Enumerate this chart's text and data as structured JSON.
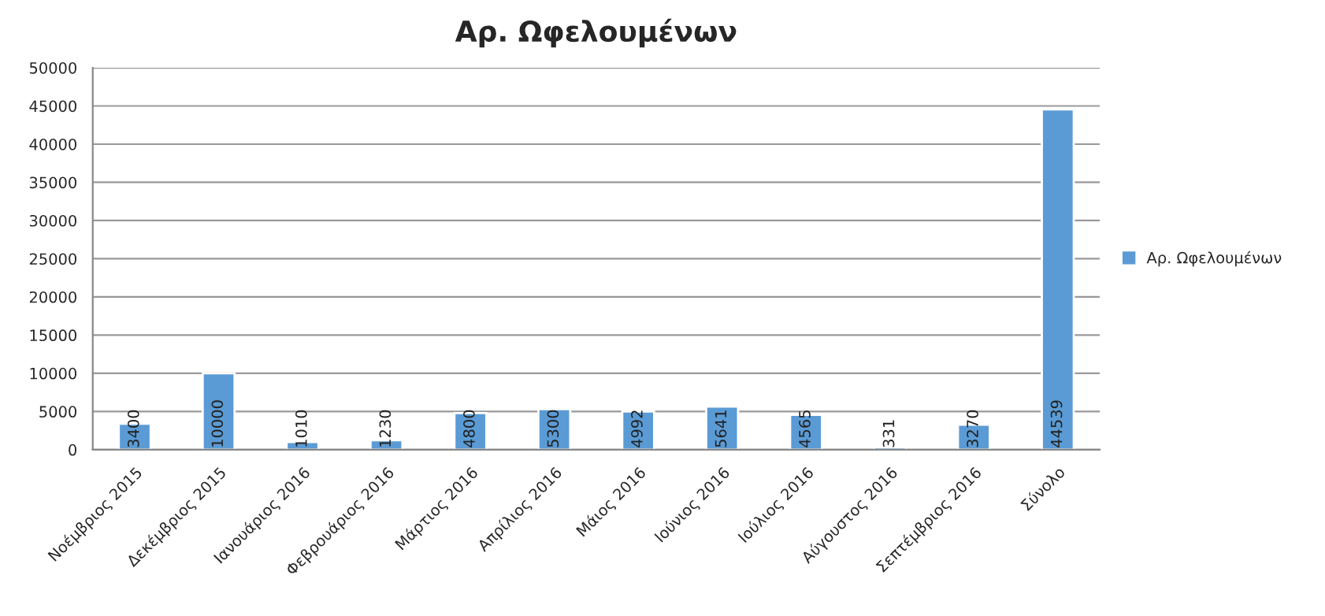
{
  "chart_data": {
    "type": "bar",
    "title": "Αρ. Ωφελουμένων",
    "categories": [
      "Νοέμβριος 2015",
      "Δεκέμβριος 2015",
      "Ιανουάριος 2016",
      "Φεβρουάριος 2016",
      "Μάρτιος 2016",
      "Απρίλιος 2016",
      "Μάιος 2016",
      "Ιούνιος 2016",
      "Ιούλιος 2016",
      "Αύγουστος 2016",
      "Σεπτέμβριος 2016",
      "Σύνολο"
    ],
    "series": [
      {
        "name": "Αρ. Ωφελουμένων",
        "color": "#5b9bd5",
        "values": [
          3400,
          10000,
          1010,
          1230,
          4800,
          5300,
          4992,
          5641,
          4565,
          331,
          3270,
          44539
        ]
      }
    ],
    "ylim": [
      0,
      50000
    ],
    "yticks": [
      0,
      5000,
      10000,
      15000,
      20000,
      25000,
      30000,
      35000,
      40000,
      45000,
      50000
    ],
    "grid": "y",
    "legend": "right",
    "data_labels": true
  }
}
